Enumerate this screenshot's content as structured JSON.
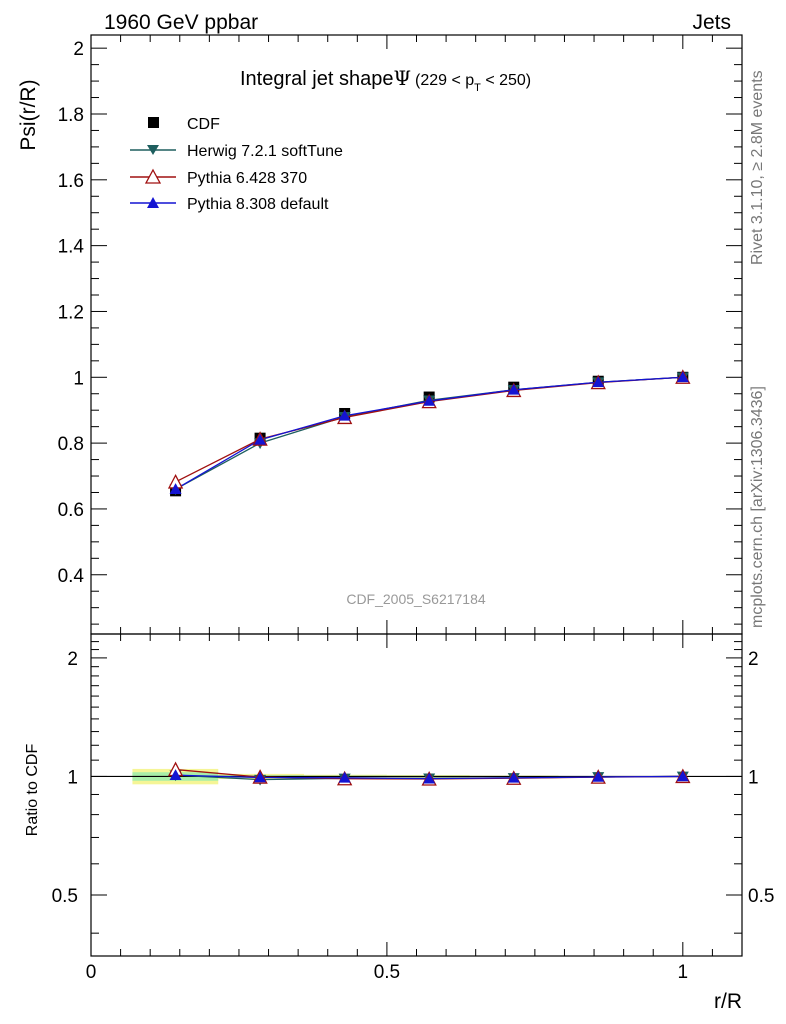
{
  "header": {
    "left": "1960 GeV ppbar",
    "right": "Jets"
  },
  "side_labels": {
    "rivet": "Rivet 3.1.10, ≥ 2.8M events",
    "mcplots": "mcplots.cern.ch [arXiv:1306.3436]"
  },
  "chart_data": {
    "type": "line",
    "title_main": "Integral jet shape",
    "title_symbol": "Ψ",
    "title_range_open": "(229 < p",
    "title_range_sub": "T",
    "title_range_close": " < 250)",
    "watermark": "CDF_2005_S6217184",
    "xlabel": "r/R",
    "ylabel": "Psi(r/R)",
    "ratio_ylabel": "Ratio to CDF",
    "xlim": [
      0,
      1.1
    ],
    "ylim": [
      0.22,
      2.04
    ],
    "ratio_ylim": [
      0.35,
      2.3
    ],
    "x_ticks": [
      {
        "v": 0,
        "label": "0"
      },
      {
        "v": 0.5,
        "label": "0.5"
      },
      {
        "v": 1,
        "label": "1"
      }
    ],
    "y_ticks": [
      {
        "v": 0.4,
        "label": "0.4"
      },
      {
        "v": 0.6,
        "label": "0.6"
      },
      {
        "v": 0.8,
        "label": "0.8"
      },
      {
        "v": 1,
        "label": "1"
      },
      {
        "v": 1.2,
        "label": "1.2"
      },
      {
        "v": 1.4,
        "label": "1.4"
      },
      {
        "v": 1.6,
        "label": "1.6"
      },
      {
        "v": 1.8,
        "label": "1.8"
      },
      {
        "v": 2,
        "label": "2"
      }
    ],
    "ratio_y_ticks": [
      {
        "v": 0.5,
        "label": "0.5"
      },
      {
        "v": 1,
        "label": "1"
      },
      {
        "v": 2,
        "label": "2"
      }
    ],
    "x": [
      0.1429,
      0.2857,
      0.4286,
      0.5714,
      0.7143,
      0.8571,
      1.0
    ],
    "data": {
      "name": "CDF",
      "y": [
        0.655,
        0.815,
        0.89,
        0.94,
        0.97,
        0.988,
        1.0
      ],
      "band_ratio": [
        {
          "x0": 0.07,
          "x1": 0.215,
          "lo": 0.955,
          "hi": 1.045,
          "lo_in": 0.975,
          "hi_in": 1.025
        },
        {
          "x0": 0.215,
          "x1": 0.36,
          "lo": 0.985,
          "hi": 1.015,
          "lo_in": 0.993,
          "hi_in": 1.007
        },
        {
          "x0": 0.36,
          "x1": 0.5,
          "lo": 0.99,
          "hi": 1.01,
          "lo_in": 0.995,
          "hi_in": 1.005
        },
        {
          "x0": 0.5,
          "x1": 0.64,
          "lo": 0.992,
          "hi": 1.008,
          "lo_in": 0.996,
          "hi_in": 1.004
        },
        {
          "x0": 0.64,
          "x1": 0.79,
          "lo": 0.995,
          "hi": 1.005,
          "lo_in": 0.997,
          "hi_in": 1.003
        }
      ]
    },
    "series": [
      {
        "name": "Herwig 7.2.1 softTune",
        "color": "#1e5f5f",
        "marker": "triangle-down",
        "y": [
          0.66,
          0.8,
          0.88,
          0.93,
          0.962,
          0.985,
          1.0
        ]
      },
      {
        "name": "Pythia 6.428 370",
        "color": "#a01010",
        "marker": "triangle-up-open",
        "y": [
          0.682,
          0.812,
          0.878,
          0.926,
          0.96,
          0.984,
          1.0
        ]
      },
      {
        "name": "Pythia 8.308 default",
        "color": "#1414d2",
        "marker": "triangle-up",
        "y": [
          0.66,
          0.81,
          0.883,
          0.928,
          0.962,
          0.985,
          1.0
        ]
      }
    ],
    "legend_placement": "top-left"
  }
}
